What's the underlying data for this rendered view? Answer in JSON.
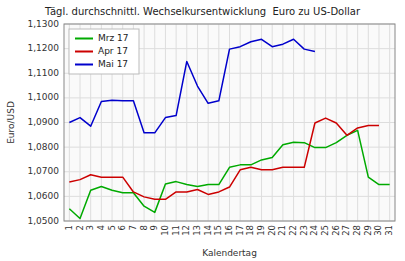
{
  "chart_data": {
    "type": "line",
    "title": "Tägl. durchschnittl. Wechselkursentwicklung  Euro zu US-Dollar",
    "x_label": "Kalendertag",
    "y_label": "Euro/USD",
    "x": [
      1,
      2,
      3,
      4,
      5,
      6,
      7,
      8,
      9,
      10,
      11,
      12,
      13,
      14,
      15,
      16,
      17,
      18,
      19,
      20,
      21,
      22,
      23,
      24,
      25,
      26,
      27,
      28,
      29,
      30,
      31
    ],
    "series": [
      {
        "name": "Mrz 17",
        "color": "#00AA00",
        "values": [
          1.055,
          1.051,
          1.0625,
          1.064,
          1.0625,
          1.0615,
          1.0615,
          1.056,
          1.0535,
          1.065,
          1.066,
          1.0648,
          1.064,
          1.0648,
          1.0648,
          1.0718,
          1.0728,
          1.0728,
          1.0748,
          1.0758,
          1.081,
          1.082,
          1.0818,
          1.0798,
          1.0798,
          1.0818,
          1.0848,
          1.0868,
          1.0678,
          1.0648,
          1.0648
        ]
      },
      {
        "name": "Apr 17",
        "color": "#CC0000",
        "values": [
          1.0658,
          1.0668,
          1.0688,
          1.0678,
          1.0678,
          1.0678,
          1.0618,
          1.0598,
          1.0588,
          1.0588,
          1.0618,
          1.0618,
          1.0628,
          1.0608,
          1.0618,
          1.0638,
          1.0708,
          1.0718,
          1.0708,
          1.0708,
          1.0718,
          1.0718,
          1.0718,
          1.0898,
          1.0918,
          1.0898,
          1.0848,
          1.0878,
          1.0888,
          1.0888,
          null
        ]
      },
      {
        "name": "Mai 17",
        "color": "#0000CC",
        "values": [
          1.09,
          1.092,
          1.0885,
          1.0985,
          1.099,
          1.0988,
          1.0988,
          1.0858,
          1.0858,
          1.092,
          1.0928,
          1.1148,
          1.1048,
          1.0978,
          1.0988,
          1.1198,
          1.1208,
          1.1228,
          1.1238,
          1.1208,
          1.1218,
          1.1238,
          1.1198,
          1.1188,
          null,
          null,
          null,
          null,
          null,
          null,
          null
        ]
      }
    ],
    "xlim": [
      0.5,
      31.5
    ],
    "xticks": [
      1,
      2,
      3,
      4,
      5,
      6,
      7,
      8,
      9,
      10,
      11,
      12,
      13,
      14,
      15,
      16,
      17,
      18,
      19,
      20,
      21,
      22,
      23,
      24,
      25,
      26,
      27,
      28,
      29,
      30,
      31
    ],
    "ylim": [
      1.05,
      1.13
    ],
    "yticks": [
      {
        "value": 1.05,
        "label": "1,0500"
      },
      {
        "value": 1.06,
        "label": "1,0600"
      },
      {
        "value": 1.07,
        "label": "1,0700"
      },
      {
        "value": 1.08,
        "label": "1,0800"
      },
      {
        "value": 1.09,
        "label": "1,0900"
      },
      {
        "value": 1.1,
        "label": "1,1000"
      },
      {
        "value": 1.11,
        "label": "1,1100"
      },
      {
        "value": 1.12,
        "label": "1,1200"
      },
      {
        "value": 1.13,
        "label": "1,1300"
      }
    ],
    "grid": true,
    "legend": "upper left"
  }
}
